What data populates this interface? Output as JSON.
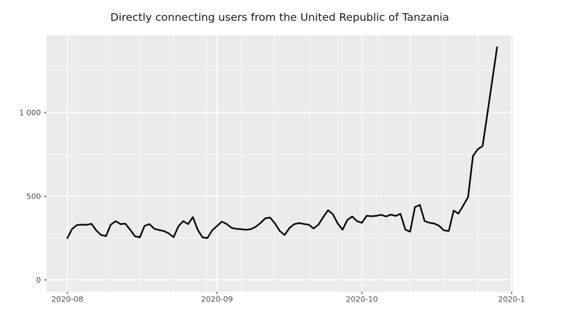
{
  "title": "Directly connecting users from the United Republic of Tanzania",
  "chart_data": {
    "type": "line",
    "title": "Directly connecting users from the United Republic of Tanzania",
    "xlabel": "",
    "ylabel": "",
    "legend": "none",
    "grid": true,
    "ylim": [
      0,
      1459
    ],
    "series_name": "directly-connecting-users",
    "y_ticks": [
      {
        "value": 0,
        "label": "0"
      },
      {
        "value": 500,
        "label": "500"
      },
      {
        "value": 1000,
        "label": "1 000"
      }
    ],
    "y_minor": [
      250,
      750,
      1250
    ],
    "x_ticks": [
      {
        "date": "2020-08-01",
        "label": "2020-08"
      },
      {
        "date": "2020-09-01",
        "label": "2020-09"
      },
      {
        "date": "2020-10-01",
        "label": "2020-10"
      },
      {
        "date": "2020-11-01",
        "label": "2020-1"
      }
    ],
    "x_minor": [
      "2020-08-02",
      "2020-08-09",
      "2020-08-16",
      "2020-08-23",
      "2020-08-30",
      "2020-09-06",
      "2020-09-13",
      "2020-09-20",
      "2020-09-27",
      "2020-10-04",
      "2020-10-11",
      "2020-10-18",
      "2020-10-25"
    ],
    "x": [
      "2020-08-01",
      "2020-08-02",
      "2020-08-03",
      "2020-08-04",
      "2020-08-05",
      "2020-08-06",
      "2020-08-07",
      "2020-08-08",
      "2020-08-09",
      "2020-08-10",
      "2020-08-11",
      "2020-08-12",
      "2020-08-13",
      "2020-08-14",
      "2020-08-15",
      "2020-08-16",
      "2020-08-17",
      "2020-08-18",
      "2020-08-19",
      "2020-08-20",
      "2020-08-21",
      "2020-08-22",
      "2020-08-23",
      "2020-08-24",
      "2020-08-25",
      "2020-08-26",
      "2020-08-27",
      "2020-08-28",
      "2020-08-29",
      "2020-08-30",
      "2020-08-31",
      "2020-09-01",
      "2020-09-02",
      "2020-09-03",
      "2020-09-04",
      "2020-09-05",
      "2020-09-06",
      "2020-09-07",
      "2020-09-08",
      "2020-09-09",
      "2020-09-10",
      "2020-09-11",
      "2020-09-12",
      "2020-09-13",
      "2020-09-14",
      "2020-09-15",
      "2020-09-16",
      "2020-09-17",
      "2020-09-18",
      "2020-09-19",
      "2020-09-20",
      "2020-09-21",
      "2020-09-22",
      "2020-09-23",
      "2020-09-24",
      "2020-09-25",
      "2020-09-26",
      "2020-09-27",
      "2020-09-28",
      "2020-09-29",
      "2020-09-30",
      "2020-10-01",
      "2020-10-02",
      "2020-10-03",
      "2020-10-04",
      "2020-10-05",
      "2020-10-06",
      "2020-10-07",
      "2020-10-08",
      "2020-10-09",
      "2020-10-10",
      "2020-10-11",
      "2020-10-12",
      "2020-10-13",
      "2020-10-14",
      "2020-10-15",
      "2020-10-16",
      "2020-10-17",
      "2020-10-18",
      "2020-10-19",
      "2020-10-20",
      "2020-10-21",
      "2020-10-22",
      "2020-10-23",
      "2020-10-24",
      "2020-10-25",
      "2020-10-26",
      "2020-10-27",
      "2020-10-28",
      "2020-10-29"
    ],
    "values": [
      250,
      305,
      328,
      330,
      329,
      335,
      296,
      268,
      262,
      330,
      351,
      333,
      336,
      300,
      261,
      254,
      323,
      333,
      306,
      298,
      292,
      278,
      255,
      320,
      351,
      333,
      375,
      300,
      254,
      250,
      296,
      322,
      348,
      334,
      311,
      305,
      303,
      299,
      303,
      317,
      340,
      368,
      372,
      337,
      292,
      268,
      310,
      333,
      340,
      334,
      330,
      307,
      330,
      375,
      416,
      392,
      337,
      300,
      358,
      379,
      351,
      341,
      383,
      380,
      383,
      389,
      379,
      390,
      382,
      395,
      300,
      288,
      435,
      448,
      351,
      341,
      337,
      323,
      296,
      292,
      414,
      396,
      445,
      495,
      740,
      780,
      800,
      995,
      1192,
      1390
    ],
    "colors": {
      "page_bg": "#FFFFFF",
      "panel_bg": "#EBEBEB",
      "grid_major": "#FFFFFF",
      "grid_minor": "#FFFFFF",
      "line": "#000000",
      "tick_label": "#4D4D4D",
      "tick_mark": "#333333",
      "title": "#1A1A1A"
    }
  }
}
